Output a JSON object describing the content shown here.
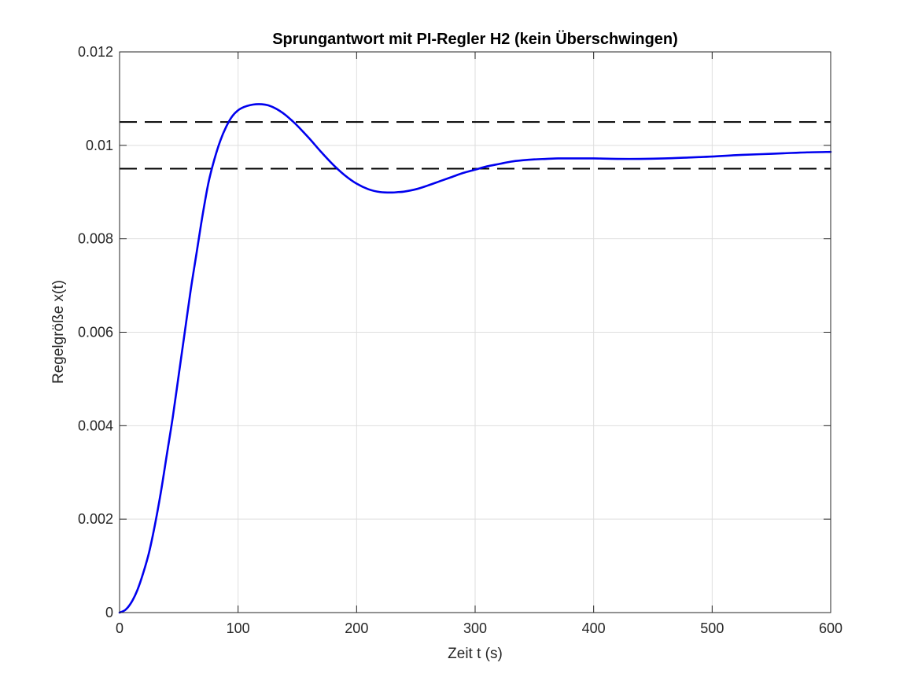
{
  "chart_data": {
    "type": "line",
    "title": "Sprungantwort mit PI-Regler H2 (kein Überschwingen)",
    "xlabel": "Zeit t (s)",
    "ylabel": "Regelgröße x(t)",
    "xlim": [
      0,
      600
    ],
    "ylim": [
      0,
      0.012
    ],
    "x_ticks": [
      0,
      100,
      200,
      300,
      400,
      500,
      600
    ],
    "x_tick_labels": [
      "0",
      "100",
      "200",
      "300",
      "400",
      "500",
      "600"
    ],
    "y_ticks": [
      0,
      0.002,
      0.004,
      0.006,
      0.008,
      0.01,
      0.012
    ],
    "y_tick_labels": [
      "0",
      "0.002",
      "0.004",
      "0.006",
      "0.008",
      "0.01",
      "0.012"
    ],
    "grid": true,
    "legend": "none",
    "series": [
      {
        "color": "#0000ee",
        "style": "solid",
        "x": [
          0,
          5,
          10,
          15,
          20,
          25,
          30,
          35,
          40,
          45,
          50,
          55,
          60,
          65,
          70,
          75,
          80,
          85,
          90,
          95,
          100,
          105,
          110,
          115,
          120,
          125,
          130,
          135,
          140,
          145,
          150,
          160,
          170,
          180,
          190,
          200,
          210,
          220,
          230,
          235,
          240,
          250,
          260,
          270,
          280,
          290,
          300,
          310,
          320,
          330,
          340,
          350,
          360,
          370,
          380,
          390,
          400,
          420,
          440,
          460,
          480,
          500,
          520,
          540,
          560,
          580,
          600
        ],
        "y": [
          0,
          6e-05,
          0.00022,
          0.00048,
          0.00085,
          0.0013,
          0.0019,
          0.0026,
          0.0034,
          0.0042,
          0.0051,
          0.006,
          0.0069,
          0.0077,
          0.0085,
          0.0092,
          0.0097,
          0.0101,
          0.0104,
          0.01062,
          0.01075,
          0.01082,
          0.01086,
          0.01088,
          0.01088,
          0.01086,
          0.01081,
          0.01074,
          0.01065,
          0.01054,
          0.01042,
          0.01015,
          0.00986,
          0.00959,
          0.00936,
          0.00918,
          0.00906,
          0.009,
          0.00899,
          0.009,
          0.00901,
          0.00906,
          0.00914,
          0.00923,
          0.00932,
          0.00941,
          0.00948,
          0.00955,
          0.0096,
          0.00965,
          0.00968,
          0.0097,
          0.00971,
          0.00972,
          0.00972,
          0.00972,
          0.00972,
          0.00971,
          0.00971,
          0.00972,
          0.00974,
          0.00976,
          0.00979,
          0.00981,
          0.00983,
          0.00985,
          0.00986
        ]
      },
      {
        "color": "#000000",
        "style": "dashed",
        "x": [
          0,
          600
        ],
        "y": [
          0.0105,
          0.0105
        ]
      },
      {
        "color": "#000000",
        "style": "dashed",
        "x": [
          0,
          600
        ],
        "y": [
          0.0095,
          0.0095
        ]
      }
    ]
  }
}
